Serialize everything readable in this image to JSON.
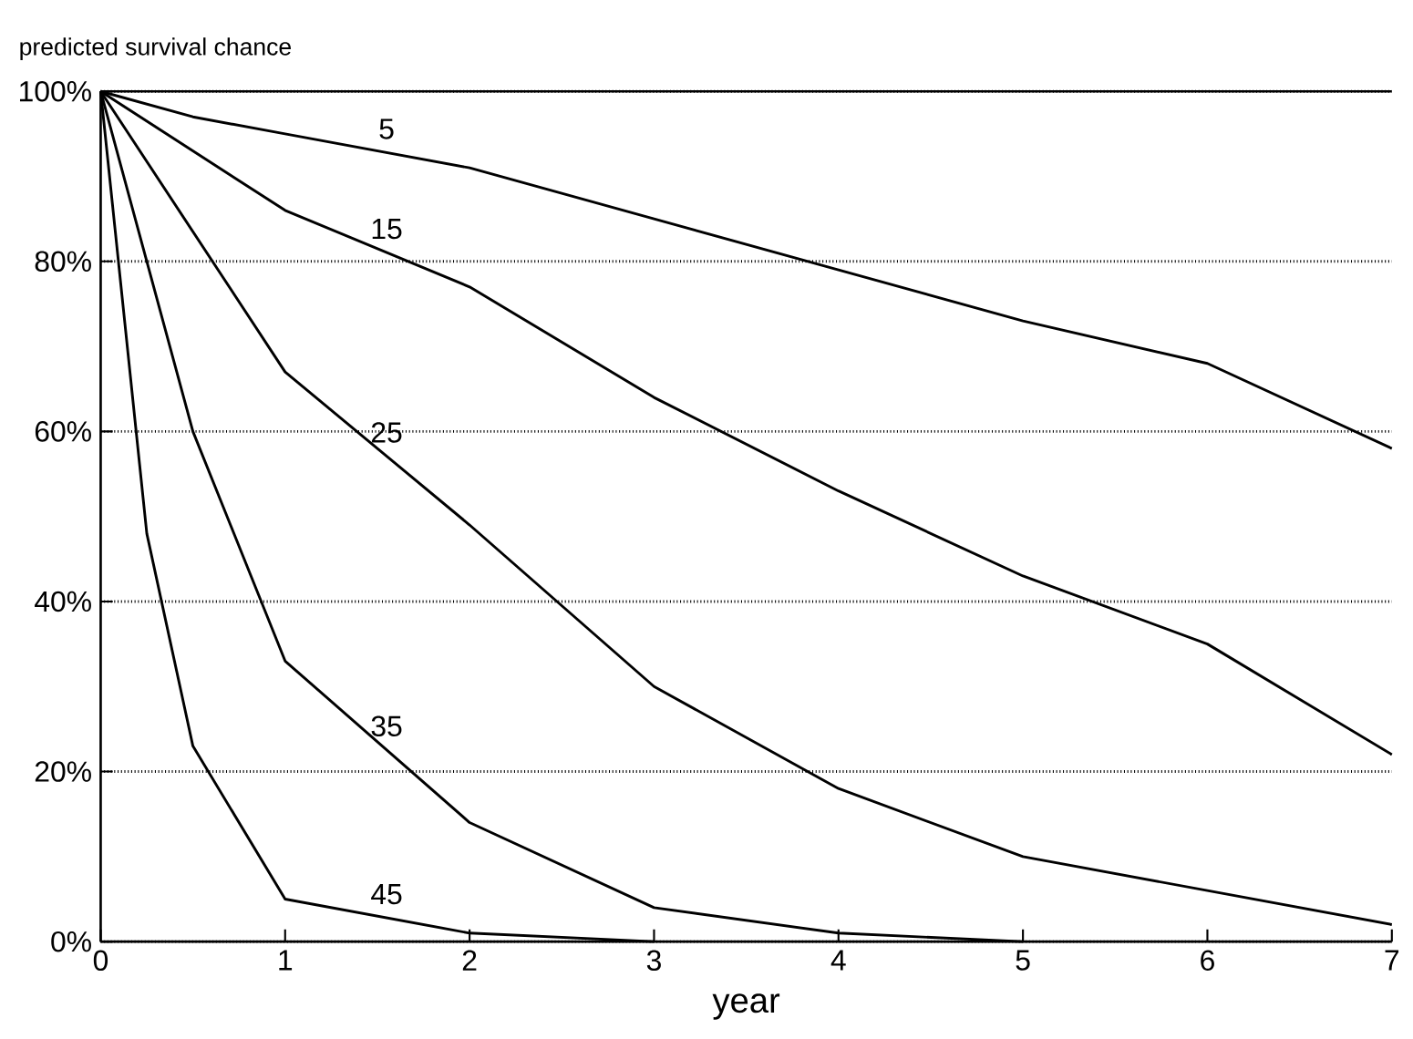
{
  "chart_data": {
    "type": "line",
    "ylabel": "predicted survival chance",
    "xlabel": "year",
    "xlim": [
      0,
      7
    ],
    "ylim": [
      0,
      100
    ],
    "xticks": [
      0,
      1,
      2,
      3,
      4,
      5,
      6,
      7
    ],
    "yticks": [
      {
        "value": 0,
        "label": "0%"
      },
      {
        "value": 20,
        "label": "20%"
      },
      {
        "value": 40,
        "label": "40%"
      },
      {
        "value": 60,
        "label": "60%"
      },
      {
        "value": 80,
        "label": "80%"
      },
      {
        "value": 100,
        "label": "100%"
      }
    ],
    "grid": "y",
    "marker": "none",
    "line_style": "solid",
    "series": [
      {
        "name": "5",
        "color": "#000000",
        "x": [
          0,
          0.5,
          1,
          2,
          3,
          4,
          5,
          6,
          7
        ],
        "values": [
          100,
          97,
          95,
          91,
          85,
          79,
          73,
          68,
          58
        ]
      },
      {
        "name": "15",
        "color": "#000000",
        "x": [
          0,
          1,
          2,
          3,
          4,
          5,
          6,
          7
        ],
        "values": [
          100,
          86,
          77,
          64,
          53,
          43,
          35,
          22
        ]
      },
      {
        "name": "25",
        "color": "#000000",
        "x": [
          0,
          1,
          2,
          3,
          4,
          5,
          6,
          7
        ],
        "values": [
          100,
          67,
          49,
          30,
          18,
          10,
          6,
          2
        ]
      },
      {
        "name": "35",
        "color": "#000000",
        "x": [
          0,
          0.5,
          1,
          2,
          3,
          4,
          5
        ],
        "values": [
          100,
          60,
          33,
          14,
          4,
          1,
          0
        ]
      },
      {
        "name": "45",
        "color": "#000000",
        "x": [
          0,
          0.25,
          0.5,
          1,
          2,
          3
        ],
        "values": [
          100,
          48,
          23,
          5,
          1,
          0
        ]
      }
    ]
  }
}
